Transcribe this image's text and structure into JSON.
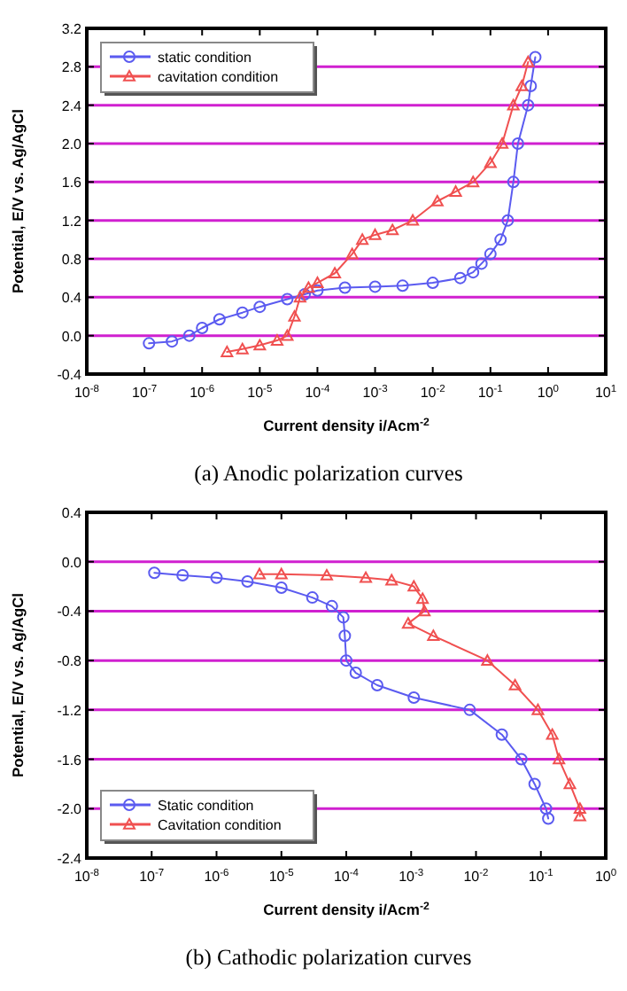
{
  "chart_data": [
    {
      "type": "line",
      "title": "(a)  Anodic  polarization  curves",
      "xlabel": "Current density i/Acm$^{-2}$",
      "ylabel": "Potential, E/V vs. Ag/AgCl",
      "log": "x",
      "grid": "y",
      "legend": "top left",
      "xlim": [
        1e-08,
        10
      ],
      "xticks": [
        {
          "value": 1e-08,
          "label": "10$^{-8}$"
        },
        {
          "value": 1e-07,
          "label": "10$^{-7}$"
        },
        {
          "value": 1e-06,
          "label": "10$^{-6}$"
        },
        {
          "value": 1e-05,
          "label": "10$^{-5}$"
        },
        {
          "value": 0.0001,
          "label": "10$^{-4}$"
        },
        {
          "value": 0.001,
          "label": "10$^{-3}$"
        },
        {
          "value": 0.01,
          "label": "10$^{-2}$"
        },
        {
          "value": 0.1,
          "label": "10$^{-1}$"
        },
        {
          "value": 1,
          "label": "10$^{0}$"
        },
        {
          "value": 10,
          "label": "10$^{1}$"
        }
      ],
      "ylim": [
        -0.4,
        3.2
      ],
      "yticks": [
        {
          "value": -0.4,
          "label": "-0.4"
        },
        {
          "value": 0,
          "label": "0.0"
        },
        {
          "value": 0.4,
          "label": "0.4"
        },
        {
          "value": 0.8,
          "label": "0.8"
        },
        {
          "value": 1.2,
          "label": "1.2"
        },
        {
          "value": 1.6,
          "label": "1.6"
        },
        {
          "value": 2.0,
          "label": "2.0"
        },
        {
          "value": 2.4,
          "label": "2.4"
        },
        {
          "value": 2.8,
          "label": "2.8"
        },
        {
          "value": 3.2,
          "label": "3.2"
        }
      ],
      "series": [
        {
          "name": "static condition",
          "color": "#5b5bf0",
          "marker": "circle",
          "x": [
            1.2e-07,
            3e-07,
            6e-07,
            1e-06,
            2e-06,
            5e-06,
            1e-05,
            3e-05,
            6e-05,
            0.0001,
            0.0003,
            0.001,
            0.003,
            0.01,
            0.03,
            0.05,
            0.07,
            0.1,
            0.15,
            0.2,
            0.25,
            0.3,
            0.45,
            0.5,
            0.6
          ],
          "values": [
            -0.08,
            -0.06,
            0.0,
            0.08,
            0.17,
            0.24,
            0.3,
            0.38,
            0.43,
            0.47,
            0.5,
            0.51,
            0.52,
            0.55,
            0.6,
            0.66,
            0.75,
            0.85,
            1.0,
            1.2,
            1.6,
            2.0,
            2.4,
            2.6,
            2.9
          ]
        },
        {
          "name": "cavitation condition",
          "color": "#f05050",
          "marker": "triangle",
          "x": [
            2.7e-06,
            5e-06,
            1e-05,
            2e-05,
            3e-05,
            4e-05,
            5e-05,
            7e-05,
            0.0001,
            0.0002,
            0.0004,
            0.0006,
            0.001,
            0.002,
            0.0045,
            0.012,
            0.025,
            0.05,
            0.1,
            0.16,
            0.25,
            0.35,
            0.45
          ],
          "values": [
            -0.17,
            -0.14,
            -0.1,
            -0.05,
            0.0,
            0.2,
            0.4,
            0.5,
            0.55,
            0.65,
            0.85,
            1.0,
            1.05,
            1.1,
            1.2,
            1.4,
            1.5,
            1.6,
            1.8,
            2.0,
            2.4,
            2.6,
            2.85
          ]
        }
      ]
    },
    {
      "type": "line",
      "title": "(b)  Cathodic  polarization  curves",
      "xlabel": "Current density i/Acm$^{-2}$",
      "ylabel": "Potential, E/V vs. Ag/AgCl",
      "log": "x",
      "grid": "y",
      "legend": "bottom left",
      "xlim": [
        1e-08,
        1
      ],
      "xticks": [
        {
          "value": 1e-08,
          "label": "10$^{-8}$"
        },
        {
          "value": 1e-07,
          "label": "10$^{-7}$"
        },
        {
          "value": 1e-06,
          "label": "10$^{-6}$"
        },
        {
          "value": 1e-05,
          "label": "10$^{-5}$"
        },
        {
          "value": 0.0001,
          "label": "10$^{-4}$"
        },
        {
          "value": 0.001,
          "label": "10$^{-3}$"
        },
        {
          "value": 0.01,
          "label": "10$^{-2}$"
        },
        {
          "value": 0.1,
          "label": "10$^{-1}$"
        },
        {
          "value": 1,
          "label": "10$^{0}$"
        }
      ],
      "ylim": [
        -2.4,
        0.4
      ],
      "yticks": [
        {
          "value": -2.4,
          "label": "-2.4"
        },
        {
          "value": -2.0,
          "label": "-2.0"
        },
        {
          "value": -1.6,
          "label": "-1.6"
        },
        {
          "value": -1.2,
          "label": "-1.2"
        },
        {
          "value": -0.8,
          "label": "-0.8"
        },
        {
          "value": -0.4,
          "label": "-0.4"
        },
        {
          "value": 0,
          "label": "0.0"
        },
        {
          "value": 0.4,
          "label": "0.4"
        }
      ],
      "series": [
        {
          "name": "Static condition",
          "color": "#5b5bf0",
          "marker": "circle",
          "x": [
            1.1e-07,
            3e-07,
            1e-06,
            3e-06,
            1e-05,
            3e-05,
            6e-05,
            9e-05,
            9.5e-05,
            0.0001,
            0.00014,
            0.0003,
            0.0011,
            0.008,
            0.025,
            0.05,
            0.08,
            0.12,
            0.13
          ],
          "values": [
            -0.09,
            -0.11,
            -0.13,
            -0.16,
            -0.21,
            -0.29,
            -0.36,
            -0.45,
            -0.6,
            -0.8,
            -0.9,
            -1.0,
            -1.1,
            -1.2,
            -1.4,
            -1.6,
            -1.8,
            -2.0,
            -2.08
          ]
        },
        {
          "name": "Cavitation condition",
          "color": "#f05050",
          "marker": "triangle",
          "x": [
            4.6e-06,
            1e-05,
            5e-05,
            0.0002,
            0.0005,
            0.0011,
            0.0015,
            0.0016,
            0.0009,
            0.0022,
            0.015,
            0.04,
            0.09,
            0.15,
            0.19,
            0.28,
            0.4,
            0.4
          ],
          "values": [
            -0.1,
            -0.1,
            -0.11,
            -0.13,
            -0.15,
            -0.2,
            -0.3,
            -0.4,
            -0.5,
            -0.6,
            -0.8,
            -1.0,
            -1.2,
            -1.4,
            -1.6,
            -1.8,
            -2.0,
            -2.06
          ]
        }
      ]
    }
  ]
}
